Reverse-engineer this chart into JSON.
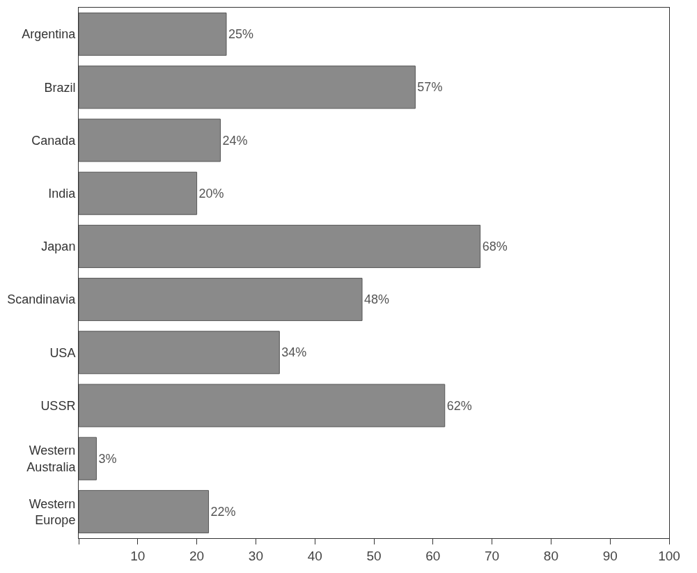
{
  "chart_data": {
    "type": "bar",
    "orientation": "horizontal",
    "categories": [
      "Argentina",
      "Brazil",
      "Canada",
      "India",
      "Japan",
      "Scandinavia",
      "USA",
      "USSR",
      "Western Australia",
      "Western Europe"
    ],
    "values": [
      25,
      57,
      24,
      20,
      68,
      48,
      34,
      62,
      3,
      22
    ],
    "value_labels": [
      "25%",
      "57%",
      "24%",
      "20%",
      "68%",
      "48%",
      "34%",
      "62%",
      "3%",
      "22%"
    ],
    "color": "#8a8a8a",
    "xlim": [
      0,
      100
    ],
    "xticks": [
      {
        "value": 0,
        "label": null
      },
      10,
      20,
      30,
      40,
      50,
      60,
      70,
      80,
      90,
      100
    ],
    "legend": false
  }
}
